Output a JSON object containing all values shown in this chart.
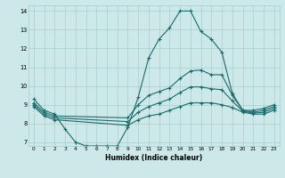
{
  "xlabel": "Humidex (Indice chaleur)",
  "bg_color": "#cce8e8",
  "grid_color": "#aacece",
  "line_color": "#1a6b6b",
  "xlim": [
    -0.5,
    23.5
  ],
  "ylim": [
    6.8,
    14.3
  ],
  "xticks": [
    0,
    1,
    2,
    3,
    4,
    5,
    6,
    7,
    8,
    9,
    10,
    11,
    12,
    13,
    14,
    15,
    16,
    17,
    18,
    19,
    20,
    21,
    22,
    23
  ],
  "yticks": [
    7,
    8,
    9,
    10,
    11,
    12,
    13,
    14
  ],
  "line1_x": [
    0,
    1,
    2,
    3,
    4,
    5,
    6,
    7,
    8,
    9,
    10,
    11,
    12,
    13,
    14,
    15,
    16,
    17,
    18,
    19,
    20,
    21,
    22,
    23
  ],
  "line1_y": [
    9.3,
    8.7,
    8.5,
    7.7,
    7.0,
    6.8,
    6.8,
    6.8,
    6.8,
    7.8,
    9.4,
    11.5,
    12.5,
    13.1,
    14.0,
    14.0,
    12.9,
    12.5,
    11.8,
    9.6,
    8.7,
    8.7,
    8.8,
    9.0
  ],
  "line2_x": [
    0,
    1,
    2,
    9,
    10,
    11,
    12,
    13,
    14,
    15,
    16,
    17,
    18,
    19,
    20,
    21,
    22,
    23
  ],
  "line2_y": [
    9.1,
    8.6,
    8.4,
    8.3,
    9.0,
    9.5,
    9.7,
    9.9,
    10.4,
    10.8,
    10.85,
    10.6,
    10.6,
    9.5,
    8.7,
    8.6,
    8.7,
    8.9
  ],
  "line3_x": [
    0,
    1,
    2,
    9,
    10,
    11,
    12,
    13,
    14,
    15,
    16,
    17,
    18,
    19,
    20,
    21,
    22,
    23
  ],
  "line3_y": [
    9.0,
    8.5,
    8.3,
    8.1,
    8.6,
    8.9,
    9.1,
    9.3,
    9.65,
    9.95,
    9.95,
    9.85,
    9.8,
    9.2,
    8.65,
    8.55,
    8.6,
    8.8
  ],
  "line4_x": [
    0,
    1,
    2,
    9,
    10,
    11,
    12,
    13,
    14,
    15,
    16,
    17,
    18,
    19,
    20,
    21,
    22,
    23
  ],
  "line4_y": [
    8.9,
    8.4,
    8.2,
    7.9,
    8.2,
    8.4,
    8.5,
    8.7,
    8.9,
    9.1,
    9.1,
    9.1,
    9.0,
    8.85,
    8.6,
    8.5,
    8.5,
    8.7
  ]
}
